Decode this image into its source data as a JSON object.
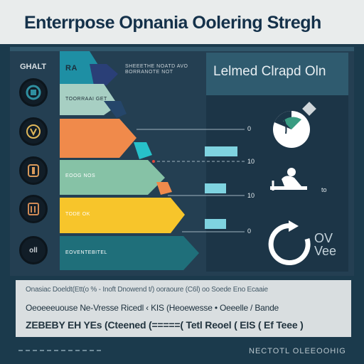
{
  "header": {
    "title": "Enterrpose Opnania Oolering Stregh"
  },
  "left_column": {
    "label": "GHALT",
    "circles": [
      {
        "icon": "headset-icon",
        "text": ""
      },
      {
        "icon": "person-icon",
        "text": ""
      },
      {
        "icon": "bars-icon",
        "text": ""
      },
      {
        "icon": "lines-icon",
        "text": ""
      },
      {
        "icon": "text-icon",
        "text": "oll"
      }
    ]
  },
  "chart": {
    "top_note": "SHEEETHE NOATD AVO BORRANOTE NOT",
    "top_label": "RA",
    "segments": [
      {
        "label": "TOORRAAI GET",
        "color": "#a7cfc3"
      },
      {
        "label": "",
        "color": "#f08a4b"
      },
      {
        "label": "EOOG NOS",
        "color": "#86c2a6"
      },
      {
        "label": "TODE OK",
        "color": "#f7c52b"
      },
      {
        "label": "EOVENTEBITEL",
        "color": "#1f6f7a"
      }
    ],
    "ticks": [
      "0",
      "10",
      "10",
      "0"
    ],
    "colors": {
      "teal_accent": "#7fd3e0",
      "arrow_blue": "#2a3f77"
    }
  },
  "right_panel": {
    "title": "Lelmed Clrapd Oln",
    "icons": [
      "pie-chart-icon",
      "person-desk-icon",
      "circular-arrow-icon"
    ],
    "small_value": "to",
    "ov_text": [
      "OV",
      "Vee"
    ]
  },
  "text_block": {
    "line1": "Onasiac Doeldt(Ett(o  % - Inoft Dnowend t/)  ooraoure  (C6l) oo Soede Eno Ecaaie",
    "line2": "Oeoeeeuouse Ne-Vresse Ricedl  ‹ KIS (Heoewesse  •   Oeeelle / Bande",
    "line3": "ZEBEBY EH YEs (Cteened (=====( Tetl Reoel ( EIS ( Ef Teee )"
  },
  "footer": {
    "text": "NECTOTL OLEEOOHIG"
  }
}
